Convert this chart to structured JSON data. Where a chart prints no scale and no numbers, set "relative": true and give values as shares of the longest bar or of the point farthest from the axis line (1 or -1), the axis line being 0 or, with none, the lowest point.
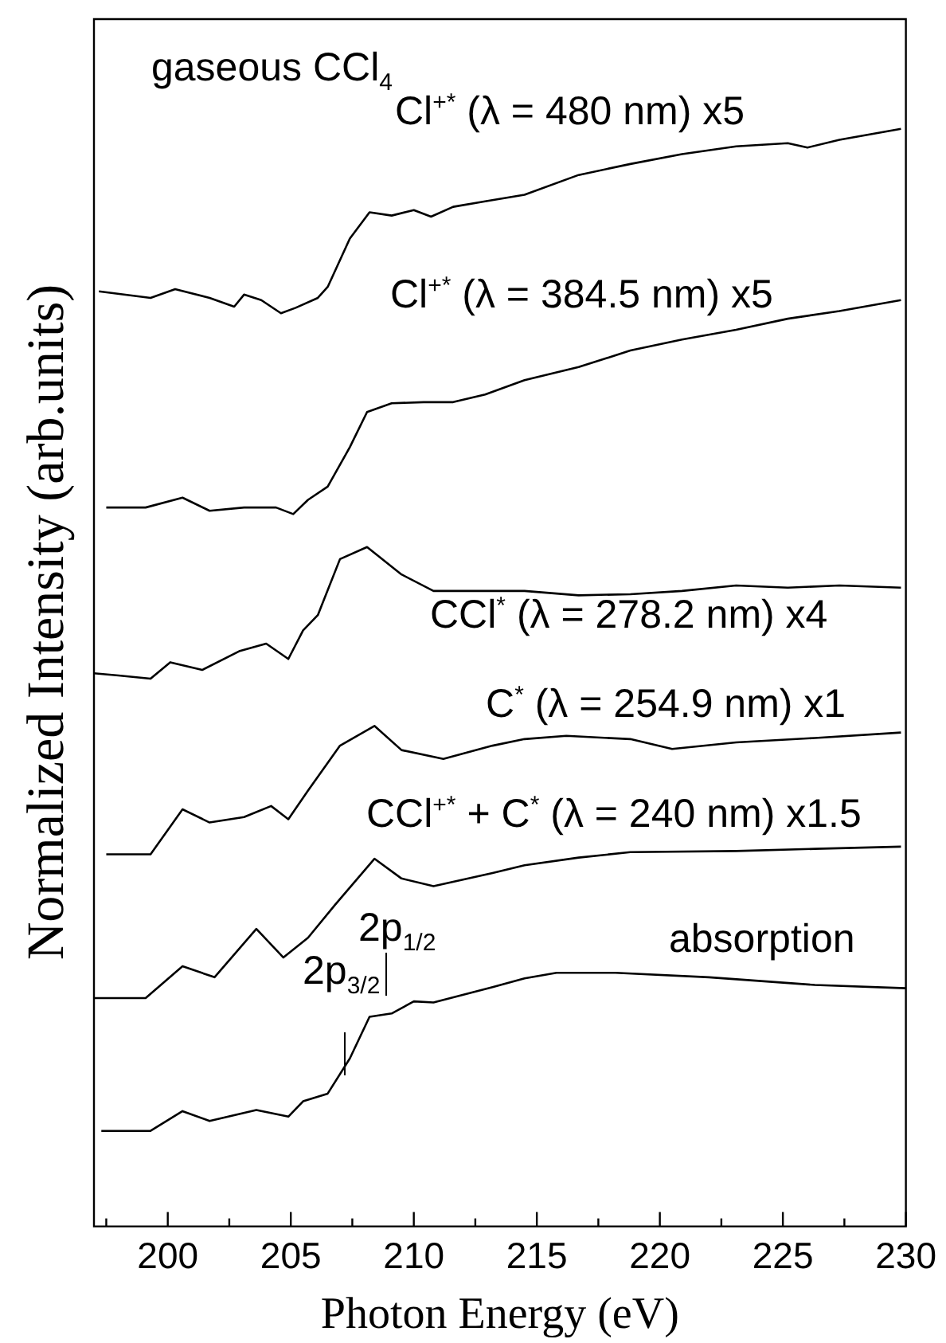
{
  "chart_data": {
    "type": "line",
    "relative": true,
    "xlabel": "Photon Energy (eV)",
    "ylabel": "Normalized Intensity (arb.units)",
    "xlim": [
      197,
      230
    ],
    "xticks": [
      {
        "value": 197.5,
        "label": null
      },
      200,
      {
        "value": 202.5,
        "label": null
      },
      205,
      {
        "value": 207.5,
        "label": null
      },
      210,
      {
        "value": 212.5,
        "label": null
      },
      215,
      {
        "value": 217.5,
        "label": null
      },
      220,
      {
        "value": 222.5,
        "label": null
      },
      225,
      {
        "value": 227.5,
        "label": null
      },
      230
    ],
    "grid": false,
    "legend": false,
    "marker": "none",
    "line_style": "solid",
    "series": [
      {
        "name": "Cl$^{+*}$ (λ = 480 nm) x5",
        "color": "#000000",
        "x": [
          197.2,
          199.3,
          200.3,
          201.7,
          202.7,
          203.1,
          203.8,
          204.6,
          205.2,
          206.1,
          206.5,
          207.4,
          208.2,
          209.1,
          210.0,
          210.7,
          211.6,
          212.9,
          214.5,
          216.7,
          218.8,
          220.9,
          223.1,
          225.2,
          226.0,
          227.3,
          229.8
        ],
        "values": [
          0.852,
          0.846,
          0.854,
          0.846,
          0.838,
          0.849,
          0.844,
          0.832,
          0.837,
          0.846,
          0.856,
          0.9,
          0.924,
          0.921,
          0.926,
          0.92,
          0.929,
          0.934,
          0.94,
          0.958,
          0.968,
          0.977,
          0.984,
          0.987,
          0.983,
          0.99,
          1.0
        ]
      },
      {
        "name": "Cl$^{+*}$ (λ = 384.5 nm) x5",
        "color": "#000000",
        "x": [
          197.5,
          199.1,
          200.6,
          201.7,
          203.1,
          204.4,
          205.1,
          205.7,
          206.5,
          207.4,
          208.1,
          209.1,
          210.4,
          211.6,
          212.9,
          214.5,
          216.7,
          218.8,
          220.9,
          223.1,
          225.2,
          227.3,
          229.8
        ],
        "values": [
          0.655,
          0.655,
          0.664,
          0.652,
          0.655,
          0.655,
          0.649,
          0.662,
          0.674,
          0.71,
          0.742,
          0.75,
          0.751,
          0.751,
          0.758,
          0.771,
          0.783,
          0.798,
          0.808,
          0.817,
          0.827,
          0.834,
          0.844
        ]
      },
      {
        "name": "CCl$^{*}$ (λ = 278.2 nm) x4",
        "color": "#000000",
        "x": [
          197.0,
          198.0,
          199.3,
          200.1,
          201.4,
          202.9,
          204.0,
          204.9,
          205.5,
          206.1,
          207.0,
          208.1,
          209.5,
          210.8,
          212.9,
          214.5,
          216.7,
          218.8,
          220.9,
          223.1,
          225.2,
          227.3,
          229.8
        ],
        "values": [
          0.504,
          0.502,
          0.499,
          0.514,
          0.507,
          0.524,
          0.531,
          0.517,
          0.543,
          0.557,
          0.608,
          0.619,
          0.594,
          0.579,
          0.579,
          0.579,
          0.575,
          0.576,
          0.579,
          0.584,
          0.582,
          0.584,
          0.582
        ]
      },
      {
        "name": "C$^{*}$ (λ = 254.9 nm) x1",
        "color": "#000000",
        "x": [
          197.5,
          199.3,
          200.6,
          201.7,
          203.1,
          204.2,
          204.9,
          205.7,
          207.0,
          208.4,
          209.5,
          211.2,
          213.2,
          214.5,
          216.2,
          218.8,
          220.5,
          223.1,
          226.3,
          229.8
        ],
        "values": [
          0.339,
          0.339,
          0.38,
          0.368,
          0.373,
          0.383,
          0.371,
          0.397,
          0.438,
          0.456,
          0.434,
          0.426,
          0.438,
          0.444,
          0.447,
          0.444,
          0.435,
          0.441,
          0.445,
          0.45
        ]
      },
      {
        "name": "CCl$^{+*}$ + C$^{*}$ (λ = 240 nm) x1.5",
        "color": "#000000",
        "x": [
          197.0,
          199.1,
          200.6,
          201.9,
          203.6,
          204.7,
          205.7,
          206.8,
          208.4,
          209.5,
          210.8,
          213.2,
          214.5,
          216.7,
          218.8,
          223.1,
          226.3,
          229.8
        ],
        "values": [
          0.208,
          0.208,
          0.237,
          0.227,
          0.271,
          0.245,
          0.263,
          0.293,
          0.335,
          0.317,
          0.31,
          0.322,
          0.329,
          0.336,
          0.341,
          0.342,
          0.344,
          0.346
        ]
      },
      {
        "name": "absorption",
        "color": "#000000",
        "x": [
          197.3,
          199.3,
          200.6,
          201.7,
          203.6,
          204.9,
          205.5,
          206.5,
          207.4,
          208.2,
          209.1,
          210.0,
          210.8,
          213.2,
          214.5,
          215.8,
          218.2,
          222.0,
          226.3,
          230.0
        ],
        "values": [
          0.087,
          0.087,
          0.105,
          0.096,
          0.106,
          0.1,
          0.114,
          0.121,
          0.153,
          0.191,
          0.194,
          0.205,
          0.204,
          0.218,
          0.226,
          0.231,
          0.231,
          0.227,
          0.22,
          0.217
        ]
      }
    ],
    "annotations": [
      "gaseous CCl$_{4}$",
      "2p$_{1/2}$",
      "2p$_{3/2}$"
    ]
  }
}
